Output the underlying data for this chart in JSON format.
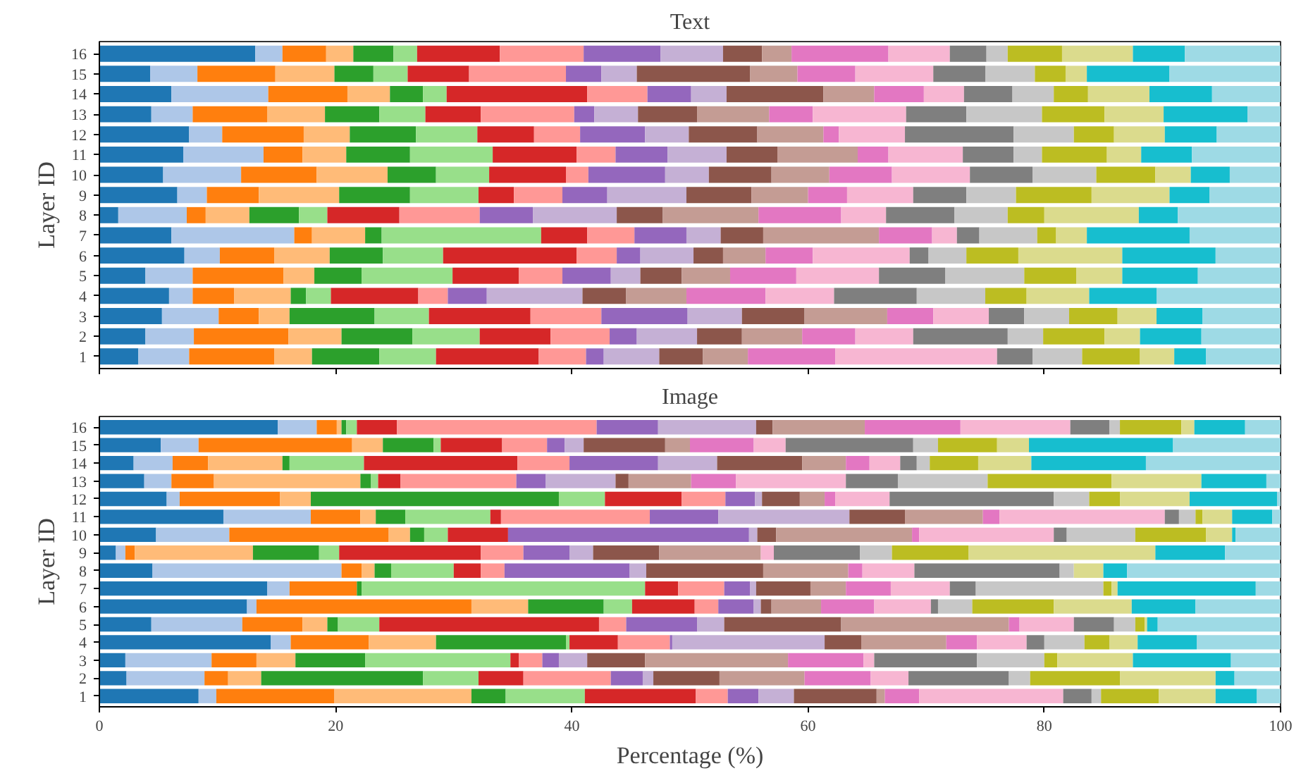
{
  "chart_data": [
    {
      "type": "bar",
      "orientation": "horizontal",
      "stacked": true,
      "title": "Text",
      "ylabel": "Layer ID",
      "tick_labels": "y",
      "grid": false,
      "xlim": [
        0,
        100
      ],
      "xticks": [
        0,
        20,
        40,
        60,
        80,
        100
      ],
      "categories": [
        "16",
        "15",
        "14",
        "13",
        "12",
        "11",
        "10",
        "9",
        "8",
        "7",
        "6",
        "5",
        "4",
        "3",
        "2",
        "1"
      ],
      "series": [
        {
          "color": "#1f77b4",
          "values": [
            13.2,
            4.3,
            6.1,
            4.4,
            7.6,
            7.1,
            5.4,
            6.6,
            1.6,
            6.1,
            7.2,
            3.9,
            5.9,
            5.3,
            3.9,
            3.3
          ]
        },
        {
          "color": "#aec7e8",
          "values": [
            2.3,
            4.0,
            8.2,
            3.5,
            2.8,
            6.8,
            6.6,
            2.5,
            5.8,
            10.4,
            3.0,
            4.0,
            2.0,
            4.8,
            4.1,
            4.3
          ]
        },
        {
          "color": "#ff7f0e",
          "values": [
            3.7,
            6.6,
            6.7,
            6.3,
            6.9,
            3.3,
            6.4,
            4.4,
            1.6,
            1.5,
            4.6,
            7.7,
            3.5,
            3.4,
            8.0,
            7.2
          ]
        },
        {
          "color": "#ffbb78",
          "values": [
            2.3,
            5.0,
            3.6,
            4.9,
            3.9,
            3.7,
            6.0,
            6.8,
            3.7,
            4.5,
            4.7,
            2.6,
            4.8,
            2.6,
            4.5,
            3.2
          ]
        },
        {
          "color": "#2ca02c",
          "values": [
            3.4,
            3.3,
            2.8,
            4.6,
            5.6,
            5.4,
            4.1,
            6.0,
            4.2,
            1.4,
            4.5,
            4.0,
            1.3,
            7.2,
            6.0,
            5.7
          ]
        },
        {
          "color": "#98df8a",
          "values": [
            2.0,
            2.9,
            2.0,
            3.9,
            5.2,
            7.0,
            4.5,
            5.8,
            2.4,
            13.5,
            5.1,
            7.7,
            2.1,
            4.6,
            5.7,
            4.8
          ]
        },
        {
          "color": "#d62728",
          "values": [
            7.0,
            5.2,
            11.9,
            4.7,
            4.8,
            7.1,
            6.5,
            3.0,
            6.1,
            3.9,
            11.3,
            5.6,
            7.4,
            8.6,
            6.0,
            8.7
          ]
        },
        {
          "color": "#ff9896",
          "values": [
            7.1,
            8.2,
            5.1,
            7.9,
            3.9,
            3.3,
            1.9,
            4.1,
            6.8,
            4.0,
            3.4,
            3.7,
            2.5,
            6.0,
            5.0,
            4.0
          ]
        },
        {
          "color": "#9467bd",
          "values": [
            6.5,
            3.0,
            3.7,
            1.7,
            5.5,
            4.4,
            6.5,
            3.8,
            4.5,
            4.4,
            2.0,
            4.1,
            3.3,
            7.3,
            2.3,
            1.5
          ]
        },
        {
          "color": "#c5b0d5",
          "values": [
            5.3,
            3.0,
            3.0,
            3.7,
            3.7,
            5.0,
            3.7,
            6.7,
            7.1,
            2.9,
            4.5,
            2.5,
            8.1,
            4.6,
            5.1,
            4.7
          ]
        },
        {
          "color": "#8c564b",
          "values": [
            3.3,
            9.6,
            8.2,
            5.0,
            5.8,
            4.3,
            5.3,
            5.5,
            3.9,
            3.6,
            2.5,
            3.5,
            3.7,
            5.3,
            3.8,
            3.7
          ]
        },
        {
          "color": "#c49c94",
          "values": [
            2.5,
            4.0,
            4.3,
            6.1,
            5.6,
            6.8,
            4.9,
            4.8,
            8.1,
            9.8,
            3.6,
            4.1,
            5.1,
            7.0,
            5.1,
            3.8
          ]
        },
        {
          "color": "#e377c2",
          "values": [
            8.2,
            4.9,
            4.2,
            3.7,
            1.3,
            2.6,
            5.3,
            3.3,
            7.0,
            4.5,
            4.0,
            5.6,
            6.7,
            3.9,
            4.5,
            7.4
          ]
        },
        {
          "color": "#f7b6d2",
          "values": [
            5.2,
            6.6,
            3.4,
            7.9,
            5.6,
            6.3,
            6.6,
            5.6,
            3.8,
            2.1,
            8.2,
            7.0,
            5.8,
            4.7,
            4.9,
            13.7
          ]
        },
        {
          "color": "#7f7f7f",
          "values": [
            3.1,
            4.4,
            4.1,
            5.1,
            9.2,
            4.3,
            5.3,
            4.5,
            5.8,
            1.9,
            1.6,
            5.6,
            7.0,
            3.0,
            8.0,
            3.0
          ]
        },
        {
          "color": "#c7c7c7",
          "values": [
            1.8,
            4.2,
            3.5,
            6.4,
            5.1,
            2.4,
            5.4,
            4.2,
            4.5,
            4.9,
            3.2,
            6.7,
            5.8,
            3.8,
            3.0,
            4.2
          ]
        },
        {
          "color": "#bcbd22",
          "values": [
            4.6,
            2.6,
            2.9,
            5.3,
            3.4,
            5.5,
            5.0,
            6.4,
            3.1,
            1.6,
            4.4,
            4.4,
            3.5,
            4.1,
            5.2,
            4.9
          ]
        },
        {
          "color": "#dbdb8d",
          "values": [
            6.0,
            1.8,
            5.2,
            5.0,
            4.3,
            2.9,
            3.0,
            6.6,
            8.0,
            2.6,
            8.8,
            3.9,
            5.3,
            3.3,
            3.0,
            2.9
          ]
        },
        {
          "color": "#17becf",
          "values": [
            4.4,
            7.0,
            5.3,
            7.1,
            4.4,
            4.3,
            3.3,
            3.4,
            3.3,
            8.7,
            7.9,
            6.4,
            5.7,
            3.9,
            5.2,
            2.7
          ]
        },
        {
          "color": "#9edae5",
          "values": [
            8.1,
            9.4,
            5.8,
            2.8,
            5.4,
            7.5,
            4.3,
            6.0,
            8.7,
            7.7,
            5.5,
            7.0,
            10.5,
            6.6,
            6.7,
            6.3
          ]
        }
      ]
    },
    {
      "type": "bar",
      "orientation": "horizontal",
      "stacked": true,
      "title": "Image",
      "xlabel": "Percentage (%)",
      "ylabel": "Layer ID",
      "grid": false,
      "xlim": [
        0,
        100
      ],
      "xticks": [
        0,
        20,
        40,
        60,
        80,
        100
      ],
      "categories": [
        "16",
        "15",
        "14",
        "13",
        "12",
        "11",
        "10",
        "9",
        "8",
        "7",
        "6",
        "5",
        "4",
        "3",
        "2",
        "1"
      ],
      "series": [
        {
          "color": "#1f77b4",
          "values": [
            15.1,
            5.2,
            2.9,
            3.8,
            5.7,
            10.5,
            4.8,
            1.4,
            4.5,
            14.2,
            12.5,
            4.4,
            14.5,
            2.2,
            2.3,
            8.4
          ]
        },
        {
          "color": "#aec7e8",
          "values": [
            3.3,
            3.2,
            3.3,
            2.3,
            1.1,
            7.4,
            6.2,
            0.8,
            16.0,
            1.9,
            0.8,
            7.7,
            1.7,
            7.3,
            6.6,
            1.5
          ]
        },
        {
          "color": "#ff7f0e",
          "values": [
            1.7,
            13.0,
            3.0,
            3.6,
            8.5,
            4.2,
            13.5,
            0.8,
            1.7,
            5.7,
            18.2,
            5.1,
            6.6,
            3.8,
            2.0,
            10.0
          ]
        },
        {
          "color": "#ffbb78",
          "values": [
            0.4,
            2.6,
            6.3,
            12.4,
            2.6,
            1.3,
            1.8,
            10.0,
            1.1,
            0,
            4.8,
            2.1,
            5.7,
            3.3,
            2.8,
            11.6
          ]
        },
        {
          "color": "#2ca02c",
          "values": [
            0.4,
            4.3,
            0.6,
            0.9,
            21.0,
            2.5,
            1.2,
            5.6,
            1.4,
            0.4,
            6.4,
            0.9,
            11.0,
            5.9,
            13.7,
            2.9
          ]
        },
        {
          "color": "#98df8a",
          "values": [
            0.9,
            0.6,
            6.3,
            0.6,
            3.9,
            7.2,
            2.0,
            1.7,
            5.3,
            24.0,
            2.4,
            3.5,
            0.3,
            12.3,
            4.7,
            6.7
          ]
        },
        {
          "color": "#d62728",
          "values": [
            3.4,
            5.2,
            13.0,
            1.9,
            6.5,
            0.9,
            5.1,
            12.0,
            2.3,
            2.8,
            5.3,
            18.6,
            4.1,
            0.7,
            3.8,
            9.4
          ]
        },
        {
          "color": "#ff9896",
          "values": [
            16.9,
            3.8,
            4.4,
            9.8,
            3.7,
            12.6,
            0,
            3.6,
            2.0,
            3.9,
            2.0,
            2.3,
            4.4,
            2.0,
            7.4,
            2.7
          ]
        },
        {
          "color": "#9467bd",
          "values": [
            5.2,
            1.5,
            7.5,
            2.5,
            2.5,
            5.8,
            20.4,
            3.9,
            10.6,
            2.2,
            3.0,
            6.0,
            0.2,
            1.4,
            2.7,
            2.6
          ]
        },
        {
          "color": "#c5b0d5",
          "values": [
            8.3,
            1.6,
            5.0,
            5.9,
            0.6,
            11.1,
            0.7,
            2.0,
            1.4,
            0.5,
            0.6,
            2.3,
            12.9,
            2.4,
            0.9,
            3.0
          ]
        },
        {
          "color": "#8c564b",
          "values": [
            1.4,
            6.9,
            7.2,
            1.1,
            3.2,
            4.7,
            1.6,
            5.6,
            9.9,
            4.6,
            0.9,
            9.9,
            3.1,
            4.9,
            5.6,
            7.0
          ]
        },
        {
          "color": "#c49c94",
          "values": [
            7.8,
            2.1,
            3.7,
            5.3,
            2.1,
            6.6,
            11.5,
            8.6,
            7.2,
            3.0,
            4.2,
            14.2,
            7.2,
            12.1,
            7.2,
            0.7
          ]
        },
        {
          "color": "#e377c2",
          "values": [
            8.1,
            5.4,
            2.0,
            3.8,
            0.9,
            1.4,
            0.6,
            0,
            1.2,
            3.8,
            4.5,
            0.9,
            2.6,
            6.4,
            5.6,
            2.9
          ]
        },
        {
          "color": "#f7b6d2",
          "values": [
            9.3,
            2.7,
            2.6,
            9.3,
            4.6,
            14.0,
            11.4,
            1.1,
            4.4,
            5.0,
            4.8,
            4.6,
            4.2,
            0.9,
            3.2,
            12.2
          ]
        },
        {
          "color": "#7f7f7f",
          "values": [
            3.3,
            10.8,
            1.4,
            4.4,
            13.9,
            1.2,
            1.1,
            7.3,
            12.3,
            2.2,
            0.6,
            3.4,
            1.5,
            8.7,
            8.5,
            2.4
          ]
        },
        {
          "color": "#c7c7c7",
          "values": [
            0.9,
            2.1,
            1.1,
            7.6,
            3.0,
            1.4,
            5.8,
            2.7,
            1.2,
            10.8,
            2.9,
            1.8,
            3.4,
            5.7,
            1.8,
            0.8
          ]
        },
        {
          "color": "#bcbd22",
          "values": [
            5.2,
            5.0,
            4.1,
            10.5,
            2.6,
            0.6,
            6.0,
            6.5,
            0,
            0.7,
            6.9,
            0.8,
            2.1,
            1.1,
            7.6,
            4.9
          ]
        },
        {
          "color": "#dbdb8d",
          "values": [
            1.1,
            2.7,
            4.5,
            7.6,
            5.9,
            2.5,
            2.2,
            15.8,
            2.5,
            0.5,
            6.6,
            0.2,
            2.4,
            6.4,
            8.1,
            4.8
          ]
        },
        {
          "color": "#17becf",
          "values": [
            4.3,
            12.2,
            9.7,
            5.5,
            7.4,
            3.4,
            0.3,
            5.9,
            2.0,
            11.7,
            5.4,
            0.9,
            5.0,
            8.3,
            1.6,
            3.5
          ]
        },
        {
          "color": "#9edae5",
          "values": [
            3.0,
            9.1,
            11.4,
            1.2,
            0.3,
            0.7,
            3.8,
            4.7,
            13.0,
            2.1,
            7.2,
            10.4,
            7.1,
            4.2,
            3.9,
            2.0
          ]
        }
      ]
    }
  ]
}
